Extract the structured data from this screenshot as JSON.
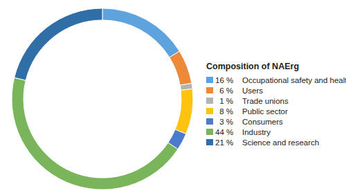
{
  "chart_data": {
    "type": "pie",
    "title": "Composition of NAErg",
    "categories": [
      "Occupational safety and health",
      "Users",
      "Trade unions",
      "Public sector",
      "Consumers",
      "Industry",
      "Science and research"
    ],
    "values": [
      16,
      6,
      1,
      8,
      3,
      44,
      21
    ],
    "value_labels": [
      "16 %",
      "6 %",
      "1 %",
      "8 %",
      "3 %",
      "44 %",
      "21 %"
    ],
    "colors": [
      "#5ea3dd",
      "#ed8a3a",
      "#b3b3b3",
      "#ffc20e",
      "#4a7bcc",
      "#7ab55c",
      "#2f6ea6"
    ],
    "legend": "right"
  }
}
